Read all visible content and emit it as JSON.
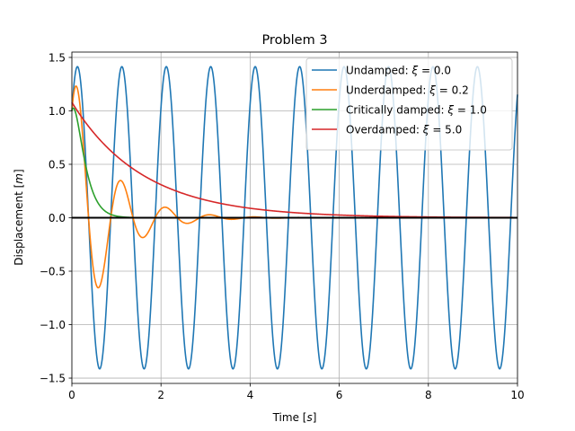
{
  "chart_data": {
    "type": "line",
    "title": "Problem 3",
    "xlabel": "Time [s]",
    "ylabel": "Displacement [m]",
    "xlabel_parts": [
      "Time [",
      "s",
      "]"
    ],
    "ylabel_parts": [
      "Displacement [",
      "m",
      "]"
    ],
    "xlim": [
      0,
      10
    ],
    "ylim": [
      -1.55,
      1.55
    ],
    "xticks": [
      0,
      2,
      4,
      6,
      8,
      10
    ],
    "xtick_labels": [
      "0",
      "2",
      "4",
      "6",
      "8",
      "10"
    ],
    "yticks": [
      -1.5,
      -1.0,
      -0.5,
      0.0,
      0.5,
      1.0,
      1.5
    ],
    "ytick_labels": [
      "−1.5",
      "−1.0",
      "−0.5",
      "0.0",
      "0.5",
      "1.0",
      "1.5"
    ],
    "grid": true,
    "legend_position": "top-right",
    "zero_line": {
      "y": 0,
      "color": "#000000"
    },
    "series": [
      {
        "name": "Undamped: ξ = 0.0",
        "label_prefix": "Undamped: ",
        "xi": "0.0",
        "color": "#1f77b4",
        "amplitude": 1.414,
        "omega": 6.3,
        "phase": 0.785,
        "tau": null,
        "kind": "oscillatory"
      },
      {
        "name": "Underdamped: ξ = 0.2",
        "label_prefix": "Underdamped: ",
        "xi": "0.2",
        "color": "#ff7f0e",
        "amplitude": 1.414,
        "omega": 6.3,
        "phase": 0.785,
        "tau": 0.79,
        "kind": "oscillatory"
      },
      {
        "name": "Critically damped: ξ = 1.0",
        "label_prefix": "Critically damped: ",
        "xi": "1.0",
        "color": "#2ca02c",
        "amplitude": 1.0,
        "omega": 0,
        "phase": 0,
        "tau": 0.158,
        "kind": "critical",
        "growth": 8.0
      },
      {
        "name": "Overdamped: ξ = 5.0",
        "label_prefix": "Overdamped: ",
        "xi": "5.0",
        "color": "#d62728",
        "amplitude": 1.08,
        "omega": 0,
        "phase": 0,
        "tau": 1.6,
        "kind": "decay"
      }
    ]
  }
}
